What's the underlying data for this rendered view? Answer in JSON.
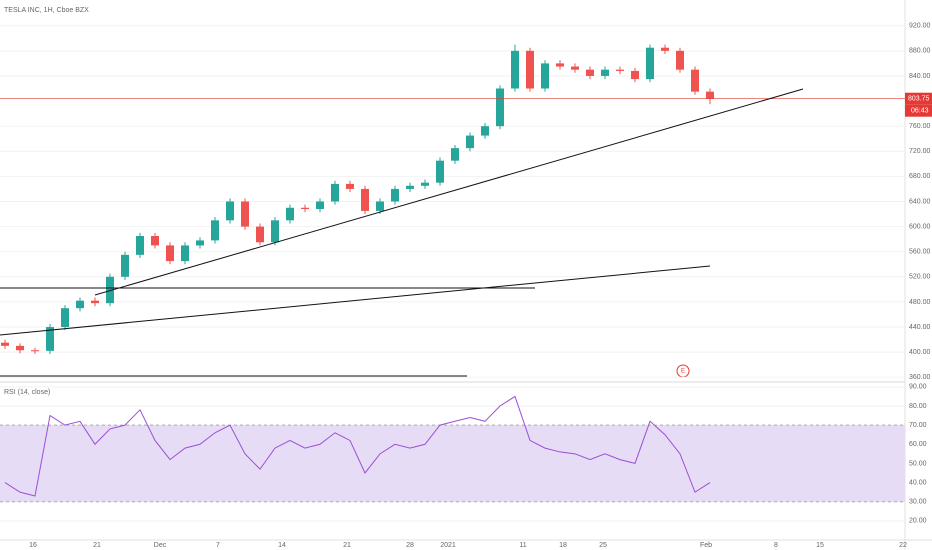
{
  "header": {
    "title": "TESLA INC, 1H, Cboe BZX",
    "countdown": "06:43",
    "event_marker": "E"
  },
  "time_axis": {
    "labels": [
      "16",
      "21",
      "Dec",
      "7",
      "14",
      "21",
      "28",
      "2021",
      "11",
      "18",
      "25",
      "Feb",
      "8",
      "15",
      "22"
    ]
  },
  "chart_data": [
    {
      "type": "candlestick",
      "up_color": "#26a69a",
      "down_color": "#ef5350",
      "last_price": 803.75,
      "last_price_color": "#e53935",
      "ylim": [
        354,
        961
      ],
      "yticks": [
        {
          "value": 360,
          "label": "360.00"
        },
        {
          "value": 400,
          "label": "400.00"
        },
        {
          "value": 440,
          "label": "440.00"
        },
        {
          "value": 480,
          "label": "480.00"
        },
        {
          "value": 520,
          "label": "520.00"
        },
        {
          "value": 560,
          "label": "560.00"
        },
        {
          "value": 600,
          "label": "600.00"
        },
        {
          "value": 640,
          "label": "640.00"
        },
        {
          "value": 680,
          "label": "680.00"
        },
        {
          "value": 720,
          "label": "720.00"
        },
        {
          "value": 760,
          "label": "760.00"
        },
        {
          "value": 840,
          "label": "840.00"
        },
        {
          "value": 880,
          "label": "880.00"
        },
        {
          "value": 920,
          "label": "920.00"
        }
      ],
      "ohlc": [
        [
          415,
          420,
          405,
          410
        ],
        [
          410,
          414,
          398,
          403
        ],
        [
          403,
          407,
          397,
          402
        ],
        [
          402,
          445,
          397,
          440
        ],
        [
          440,
          475,
          435,
          470
        ],
        [
          470,
          487,
          465,
          482
        ],
        [
          482,
          487,
          473,
          478
        ],
        [
          478,
          525,
          473,
          520
        ],
        [
          520,
          560,
          515,
          555
        ],
        [
          555,
          590,
          550,
          585
        ],
        [
          585,
          590,
          565,
          570
        ],
        [
          570,
          575,
          540,
          545
        ],
        [
          545,
          575,
          540,
          570
        ],
        [
          570,
          583,
          565,
          578
        ],
        [
          578,
          615,
          573,
          610
        ],
        [
          610,
          645,
          605,
          640
        ],
        [
          640,
          645,
          595,
          600
        ],
        [
          600,
          605,
          570,
          575
        ],
        [
          575,
          615,
          570,
          610
        ],
        [
          610,
          635,
          605,
          630
        ],
        [
          630,
          635,
          623,
          628
        ],
        [
          628,
          645,
          623,
          640
        ],
        [
          640,
          673,
          635,
          668
        ],
        [
          668,
          673,
          655,
          660
        ],
        [
          660,
          665,
          620,
          625
        ],
        [
          625,
          645,
          620,
          640
        ],
        [
          640,
          665,
          635,
          660
        ],
        [
          660,
          670,
          655,
          665
        ],
        [
          665,
          675,
          660,
          670
        ],
        [
          670,
          710,
          665,
          705
        ],
        [
          705,
          730,
          700,
          725
        ],
        [
          725,
          750,
          720,
          745
        ],
        [
          745,
          765,
          740,
          760
        ],
        [
          760,
          825,
          755,
          820
        ],
        [
          820,
          890,
          815,
          880
        ],
        [
          880,
          885,
          815,
          820
        ],
        [
          820,
          865,
          815,
          860
        ],
        [
          860,
          865,
          850,
          855
        ],
        [
          855,
          860,
          845,
          850
        ],
        [
          850,
          855,
          835,
          840
        ],
        [
          840,
          855,
          835,
          850
        ],
        [
          850,
          855,
          843,
          848
        ],
        [
          848,
          853,
          830,
          835
        ],
        [
          835,
          890,
          830,
          885
        ],
        [
          885,
          890,
          875,
          880
        ],
        [
          880,
          885,
          845,
          850
        ],
        [
          850,
          855,
          810,
          815
        ],
        [
          815,
          820,
          795,
          803.75
        ]
      ]
    },
    {
      "type": "line",
      "title": "RSI (14, close)",
      "color": "#9c4fd6",
      "band": [
        30,
        70
      ],
      "band_color": "#e6dcf5",
      "ylim": [
        10,
        92
      ],
      "yticks": [
        {
          "value": 20,
          "label": "20.00"
        },
        {
          "value": 30,
          "label": "30.00"
        },
        {
          "value": 40,
          "label": "40.00"
        },
        {
          "value": 50,
          "label": "50.00"
        },
        {
          "value": 60,
          "label": "60.00"
        },
        {
          "value": 70,
          "label": "70.00"
        },
        {
          "value": 80,
          "label": "80.00"
        },
        {
          "value": 90,
          "label": "90.00"
        }
      ],
      "values": [
        40,
        35,
        33,
        75,
        70,
        72,
        60,
        68,
        70,
        78,
        62,
        52,
        58,
        60,
        66,
        70,
        55,
        47,
        58,
        62,
        58,
        60,
        66,
        62,
        45,
        55,
        60,
        58,
        60,
        70,
        72,
        74,
        72,
        80,
        85,
        62,
        58,
        56,
        55,
        52,
        55,
        52,
        50,
        72,
        65,
        55,
        35,
        40
      ]
    }
  ]
}
